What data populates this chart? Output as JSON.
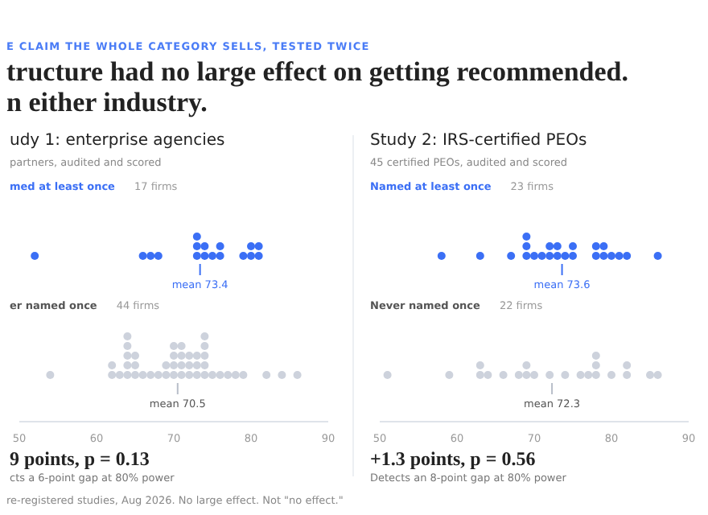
{
  "chart_data": [
    {
      "type": "other",
      "subtitle": "E CLAIM THE WHOLE CATEGORY SELLS, TESTED TWICE",
      "title": "tructure had no large effect on getting recommended.\nn either industry.",
      "annotations": [
        "re-registered studies, Aug 2026. No large effect. Not \"no effect.\""
      ]
    },
    {
      "type": "scatter",
      "orientation": "horizontal",
      "marker": "circle",
      "title": "udy 1: enterprise agencies",
      "subtitle": "partners, audited and scored",
      "categories": [
        "med at least once",
        "er named once"
      ],
      "xlim": [
        50,
        90
      ],
      "xticks": [
        50,
        60,
        70,
        80,
        90
      ],
      "series": [
        {
          "color": "#3b6ff5",
          "x": [
            "med at least once",
            "med at least once",
            "med at least once",
            "med at least once",
            "med at least once",
            "med at least once",
            "med at least once",
            "med at least once",
            "med at least once",
            "med at least once",
            "med at least once",
            "med at least once",
            "med at least once",
            "med at least once",
            "med at least once",
            "med at least once",
            "med at least once"
          ],
          "values": [
            52,
            66,
            67,
            68,
            73,
            73,
            73,
            74,
            74,
            75,
            76,
            76,
            79,
            80,
            80,
            81,
            81
          ]
        },
        {
          "color": "#cdd2dc",
          "x": [
            "er named once",
            "er named once",
            "er named once",
            "er named once",
            "er named once",
            "er named once",
            "er named once",
            "er named once",
            "er named once",
            "er named once",
            "er named once",
            "er named once",
            "er named once",
            "er named once",
            "er named once",
            "er named once",
            "er named once",
            "er named once",
            "er named once",
            "er named once",
            "er named once",
            "er named once",
            "er named once",
            "er named once",
            "er named once",
            "er named once",
            "er named once",
            "er named once",
            "er named once",
            "er named once",
            "er named once",
            "er named once",
            "er named once",
            "er named once",
            "er named once",
            "er named once",
            "er named once",
            "er named once",
            "er named once",
            "er named once",
            "er named once",
            "er named once",
            "er named once",
            "er named once"
          ],
          "values": [
            54,
            62,
            62,
            63,
            64,
            64,
            64,
            64,
            64,
            65,
            65,
            65,
            66,
            67,
            68,
            69,
            69,
            70,
            70,
            70,
            70,
            71,
            71,
            71,
            71,
            72,
            72,
            72,
            73,
            73,
            73,
            74,
            74,
            74,
            74,
            74,
            75,
            76,
            77,
            78,
            79,
            82,
            84,
            86
          ]
        }
      ],
      "ref_lines": [
        {
          "axis": "x",
          "value": 73.4,
          "label": "mean 73.4",
          "color": "#3b6ff5"
        },
        {
          "axis": "x",
          "value": 70.5,
          "label": "mean 70.5",
          "color": "#b8bec9"
        }
      ],
      "annotations": [
        "17 firms",
        "44 firms",
        "9 points, p = 0.13",
        "cts a 6-point gap at 80% power"
      ]
    },
    {
      "type": "scatter",
      "orientation": "horizontal",
      "marker": "circle",
      "title": "Study 2: IRS-certified PEOs",
      "subtitle": "45 certified PEOs, audited and scored",
      "categories": [
        "Named at least once",
        "Never named once"
      ],
      "xlim": [
        50,
        90
      ],
      "xticks": [
        50,
        60,
        70,
        80,
        90
      ],
      "series": [
        {
          "color": "#3b6ff5",
          "x": [
            "Named at least once",
            "Named at least once",
            "Named at least once",
            "Named at least once",
            "Named at least once",
            "Named at least once",
            "Named at least once",
            "Named at least once",
            "Named at least once",
            "Named at least once",
            "Named at least once",
            "Named at least once",
            "Named at least once",
            "Named at least once",
            "Named at least once",
            "Named at least once",
            "Named at least once",
            "Named at least once",
            "Named at least once",
            "Named at least once",
            "Named at least once",
            "Named at least once",
            "Named at least once"
          ],
          "values": [
            58,
            63,
            67,
            69,
            69,
            69,
            70,
            71,
            72,
            72,
            73,
            73,
            74,
            75,
            75,
            78,
            78,
            79,
            79,
            80,
            81,
            82,
            86
          ]
        },
        {
          "color": "#cdd2dc",
          "x": [
            "Never named once",
            "Never named once",
            "Never named once",
            "Never named once",
            "Never named once",
            "Never named once",
            "Never named once",
            "Never named once",
            "Never named once",
            "Never named once",
            "Never named once",
            "Never named once",
            "Never named once",
            "Never named once",
            "Never named once",
            "Never named once",
            "Never named once",
            "Never named once",
            "Never named once",
            "Never named once",
            "Never named once",
            "Never named once"
          ],
          "values": [
            51,
            59,
            63,
            63,
            64,
            66,
            68,
            69,
            69,
            70,
            72,
            74,
            76,
            77,
            78,
            78,
            78,
            80,
            82,
            82,
            85,
            86
          ]
        }
      ],
      "ref_lines": [
        {
          "axis": "x",
          "value": 73.6,
          "label": "mean 73.6",
          "color": "#3b6ff5"
        },
        {
          "axis": "x",
          "value": 72.3,
          "label": "mean 72.3",
          "color": "#b8bec9"
        }
      ],
      "annotations": [
        "23 firms",
        "22 firms",
        "+1.3 points, p = 0.56",
        "Detects an 8-point gap at 80% power"
      ]
    }
  ]
}
